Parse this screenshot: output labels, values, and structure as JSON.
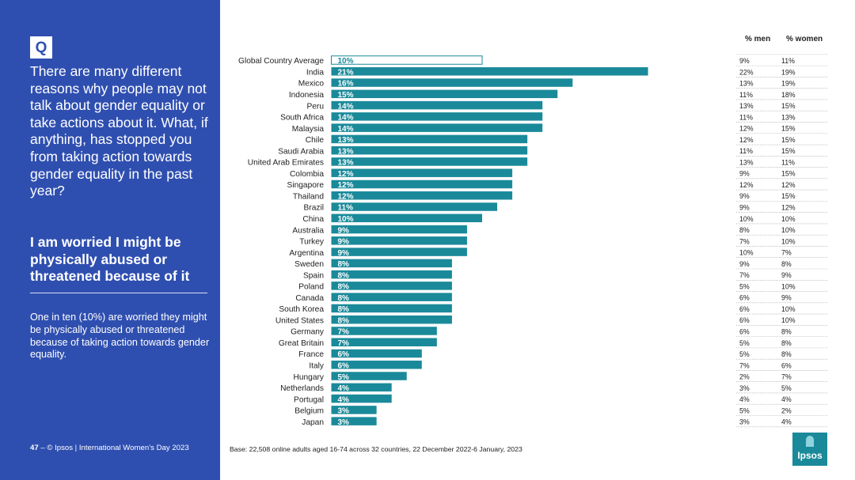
{
  "sidebar": {
    "q_label": "Q",
    "question": "There are many different reasons why people may not talk about gender equality or take actions about it.  What, if anything, has stopped you from taking action towards gender equality in the past year?",
    "statement": "I am worried I might be physically abused or threatened because of it",
    "summary": "One in ten (10%) are worried they might be physically abused or threatened because of taking action towards gender equality.",
    "page_number": "47",
    "footer": "–  © Ipsos | International Women’s Day 2023"
  },
  "base_note": "Base: 22,508 online adults aged 16-74 across 32 countries, 22 December 2022-6 January, 2023",
  "logo_text": "Ipsos",
  "colors": {
    "bar": "#1a8a9a",
    "sidebar": "#2f4fb0"
  },
  "chart_data": {
    "type": "bar",
    "orientation": "horizontal",
    "categories": [
      "Global Country Average",
      "India",
      "Mexico",
      "Indonesia",
      "Peru",
      "South Africa",
      "Malaysia",
      "Chile",
      "Saudi Arabia",
      "United Arab Emirates",
      "Colombia",
      "Singapore",
      "Thailand",
      "Brazil",
      "China",
      "Australia",
      "Turkey",
      "Argentina",
      "Sweden",
      "Spain",
      "Poland",
      "Canada",
      "South Korea",
      "United States",
      "Germany",
      "Great Britain",
      "France",
      "Italy",
      "Hungary",
      "Netherlands",
      "Portugal",
      "Belgium",
      "Japan"
    ],
    "values": [
      10,
      21,
      16,
      15,
      14,
      14,
      14,
      13,
      13,
      13,
      12,
      12,
      12,
      11,
      10,
      9,
      9,
      9,
      8,
      8,
      8,
      8,
      8,
      8,
      7,
      7,
      6,
      6,
      5,
      4,
      4,
      3,
      3
    ],
    "labels": [
      "10%",
      "21%",
      "16%",
      "15%",
      "14%",
      "14%",
      "14%",
      "13%",
      "13%",
      "13%",
      "12%",
      "12%",
      "12%",
      "11%",
      "10%",
      "9%",
      "9%",
      "9%",
      "8%",
      "8%",
      "8%",
      "8%",
      "8%",
      "8%",
      "7%",
      "7%",
      "6%",
      "6%",
      "5%",
      "4%",
      "4%",
      "3%",
      "3%"
    ],
    "outlined_first": true,
    "table": {
      "columns": [
        "% men",
        "% women"
      ],
      "men": [
        "9%",
        "22%",
        "13%",
        "11%",
        "13%",
        "11%",
        "12%",
        "12%",
        "11%",
        "13%",
        "9%",
        "12%",
        "9%",
        "9%",
        "10%",
        "8%",
        "7%",
        "10%",
        "9%",
        "7%",
        "5%",
        "6%",
        "6%",
        "6%",
        "6%",
        "5%",
        "5%",
        "7%",
        "2%",
        "3%",
        "4%",
        "5%",
        "3%"
      ],
      "women": [
        "11%",
        "19%",
        "19%",
        "18%",
        "15%",
        "13%",
        "15%",
        "15%",
        "15%",
        "11%",
        "15%",
        "12%",
        "15%",
        "12%",
        "10%",
        "10%",
        "10%",
        "7%",
        "8%",
        "9%",
        "10%",
        "9%",
        "10%",
        "10%",
        "8%",
        "8%",
        "8%",
        "6%",
        "7%",
        "5%",
        "4%",
        "2%",
        "4%"
      ]
    }
  }
}
